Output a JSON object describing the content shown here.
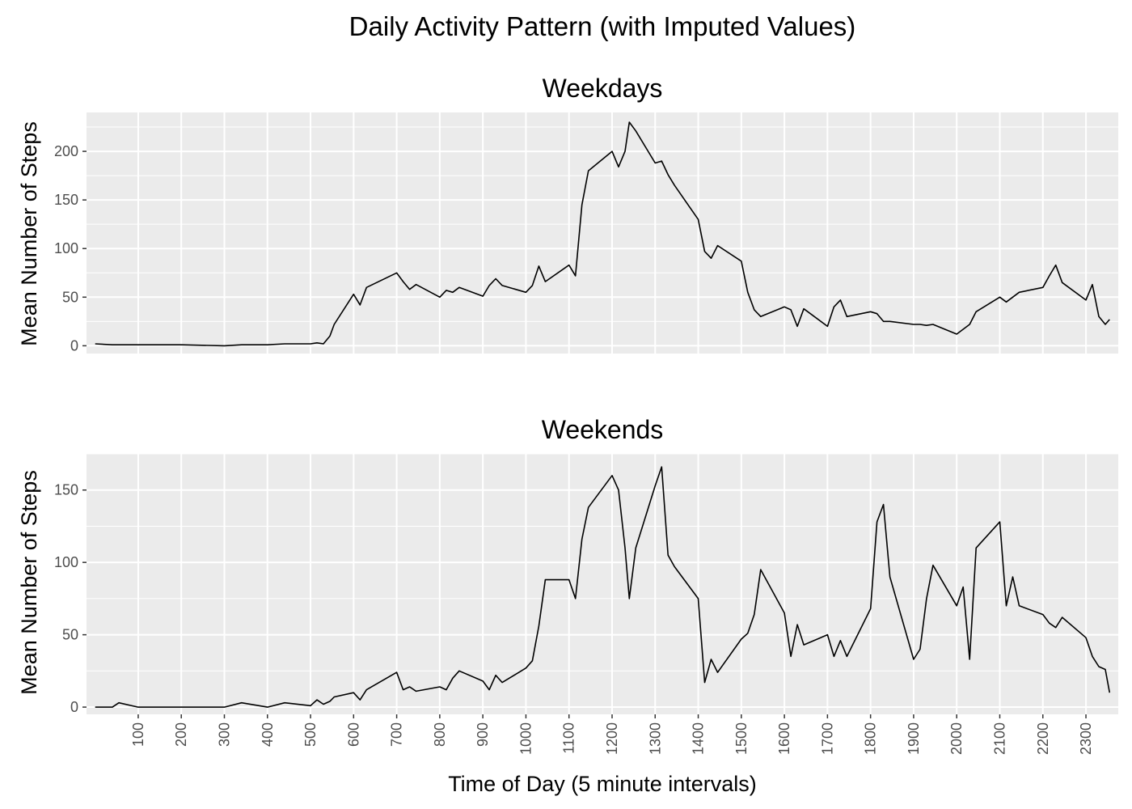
{
  "chart_data": {
    "type": "line",
    "title": "Daily Activity Pattern (with Imputed Values)",
    "xlabel": "Time of Day (5 minute intervals)",
    "ylabel": "Mean Number of Steps",
    "x_range": [
      0,
      2355
    ],
    "x_ticks": [
      100,
      200,
      300,
      400,
      500,
      600,
      700,
      800,
      900,
      1000,
      1100,
      1200,
      1300,
      1400,
      1500,
      1600,
      1700,
      1800,
      1900,
      2000,
      2100,
      2200,
      2300
    ],
    "grid": true,
    "line_color": "#000000",
    "panel_background": "#ebebeb",
    "grid_color": "#ffffff",
    "panels": [
      {
        "name": "Weekdays",
        "ylim": [
          -8,
          240
        ],
        "y_ticks": [
          0,
          50,
          100,
          150,
          200
        ],
        "points": [
          [
            0,
            2
          ],
          [
            40,
            1
          ],
          [
            100,
            1
          ],
          [
            140,
            1
          ],
          [
            200,
            1
          ],
          [
            300,
            0
          ],
          [
            340,
            1
          ],
          [
            400,
            1
          ],
          [
            440,
            2
          ],
          [
            500,
            2
          ],
          [
            515,
            3
          ],
          [
            530,
            2
          ],
          [
            545,
            10
          ],
          [
            555,
            22
          ],
          [
            600,
            53
          ],
          [
            615,
            42
          ],
          [
            630,
            60
          ],
          [
            700,
            75
          ],
          [
            715,
            66
          ],
          [
            730,
            58
          ],
          [
            745,
            63
          ],
          [
            800,
            50
          ],
          [
            815,
            57
          ],
          [
            830,
            55
          ],
          [
            845,
            60
          ],
          [
            900,
            51
          ],
          [
            915,
            62
          ],
          [
            930,
            69
          ],
          [
            945,
            62
          ],
          [
            1000,
            55
          ],
          [
            1015,
            62
          ],
          [
            1030,
            82
          ],
          [
            1045,
            66
          ],
          [
            1100,
            83
          ],
          [
            1115,
            72
          ],
          [
            1130,
            145
          ],
          [
            1145,
            180
          ],
          [
            1200,
            200
          ],
          [
            1215,
            184
          ],
          [
            1230,
            200
          ],
          [
            1240,
            230
          ],
          [
            1255,
            221
          ],
          [
            1300,
            188
          ],
          [
            1315,
            190
          ],
          [
            1330,
            176
          ],
          [
            1345,
            165
          ],
          [
            1400,
            130
          ],
          [
            1415,
            97
          ],
          [
            1430,
            90
          ],
          [
            1445,
            103
          ],
          [
            1500,
            87
          ],
          [
            1515,
            55
          ],
          [
            1530,
            37
          ],
          [
            1545,
            30
          ],
          [
            1600,
            40
          ],
          [
            1615,
            37
          ],
          [
            1630,
            20
          ],
          [
            1645,
            38
          ],
          [
            1700,
            20
          ],
          [
            1715,
            40
          ],
          [
            1730,
            47
          ],
          [
            1745,
            30
          ],
          [
            1800,
            35
          ],
          [
            1815,
            33
          ],
          [
            1830,
            25
          ],
          [
            1845,
            25
          ],
          [
            1900,
            22
          ],
          [
            1915,
            22
          ],
          [
            1930,
            21
          ],
          [
            1945,
            22
          ],
          [
            2000,
            12
          ],
          [
            2015,
            17
          ],
          [
            2030,
            22
          ],
          [
            2045,
            35
          ],
          [
            2100,
            50
          ],
          [
            2115,
            45
          ],
          [
            2130,
            50
          ],
          [
            2145,
            55
          ],
          [
            2200,
            60
          ],
          [
            2215,
            72
          ],
          [
            2230,
            83
          ],
          [
            2245,
            65
          ],
          [
            2300,
            47
          ],
          [
            2315,
            63
          ],
          [
            2330,
            30
          ],
          [
            2345,
            22
          ],
          [
            2355,
            27
          ]
        ]
      },
      {
        "name": "Weekends",
        "ylim": [
          -5,
          175
        ],
        "y_ticks": [
          0,
          50,
          100,
          150
        ],
        "points": [
          [
            0,
            0
          ],
          [
            40,
            0
          ],
          [
            55,
            3
          ],
          [
            100,
            0
          ],
          [
            140,
            0
          ],
          [
            200,
            0
          ],
          [
            300,
            0
          ],
          [
            340,
            3
          ],
          [
            400,
            0
          ],
          [
            440,
            3
          ],
          [
            500,
            1
          ],
          [
            515,
            5
          ],
          [
            530,
            2
          ],
          [
            545,
            4
          ],
          [
            555,
            7
          ],
          [
            600,
            10
          ],
          [
            615,
            5
          ],
          [
            630,
            12
          ],
          [
            700,
            24
          ],
          [
            715,
            12
          ],
          [
            730,
            14
          ],
          [
            745,
            11
          ],
          [
            800,
            14
          ],
          [
            815,
            12
          ],
          [
            830,
            20
          ],
          [
            845,
            25
          ],
          [
            900,
            18
          ],
          [
            915,
            12
          ],
          [
            930,
            22
          ],
          [
            945,
            17
          ],
          [
            1000,
            27
          ],
          [
            1015,
            32
          ],
          [
            1030,
            56
          ],
          [
            1045,
            88
          ],
          [
            1100,
            88
          ],
          [
            1115,
            75
          ],
          [
            1130,
            116
          ],
          [
            1145,
            138
          ],
          [
            1200,
            160
          ],
          [
            1215,
            150
          ],
          [
            1230,
            110
          ],
          [
            1240,
            75
          ],
          [
            1255,
            110
          ],
          [
            1300,
            153
          ],
          [
            1315,
            166
          ],
          [
            1330,
            105
          ],
          [
            1345,
            97
          ],
          [
            1400,
            75
          ],
          [
            1415,
            17
          ],
          [
            1430,
            33
          ],
          [
            1445,
            24
          ],
          [
            1500,
            47
          ],
          [
            1515,
            51
          ],
          [
            1530,
            64
          ],
          [
            1545,
            95
          ],
          [
            1600,
            65
          ],
          [
            1615,
            35
          ],
          [
            1630,
            57
          ],
          [
            1645,
            43
          ],
          [
            1700,
            50
          ],
          [
            1715,
            35
          ],
          [
            1730,
            46
          ],
          [
            1745,
            35
          ],
          [
            1800,
            68
          ],
          [
            1815,
            128
          ],
          [
            1830,
            140
          ],
          [
            1845,
            90
          ],
          [
            1900,
            33
          ],
          [
            1915,
            40
          ],
          [
            1930,
            75
          ],
          [
            1945,
            98
          ],
          [
            2000,
            70
          ],
          [
            2015,
            83
          ],
          [
            2030,
            33
          ],
          [
            2045,
            110
          ],
          [
            2100,
            128
          ],
          [
            2115,
            70
          ],
          [
            2130,
            90
          ],
          [
            2145,
            70
          ],
          [
            2200,
            64
          ],
          [
            2215,
            58
          ],
          [
            2230,
            55
          ],
          [
            2245,
            62
          ],
          [
            2300,
            48
          ],
          [
            2315,
            35
          ],
          [
            2330,
            28
          ],
          [
            2345,
            26
          ],
          [
            2355,
            10
          ]
        ]
      }
    ]
  }
}
